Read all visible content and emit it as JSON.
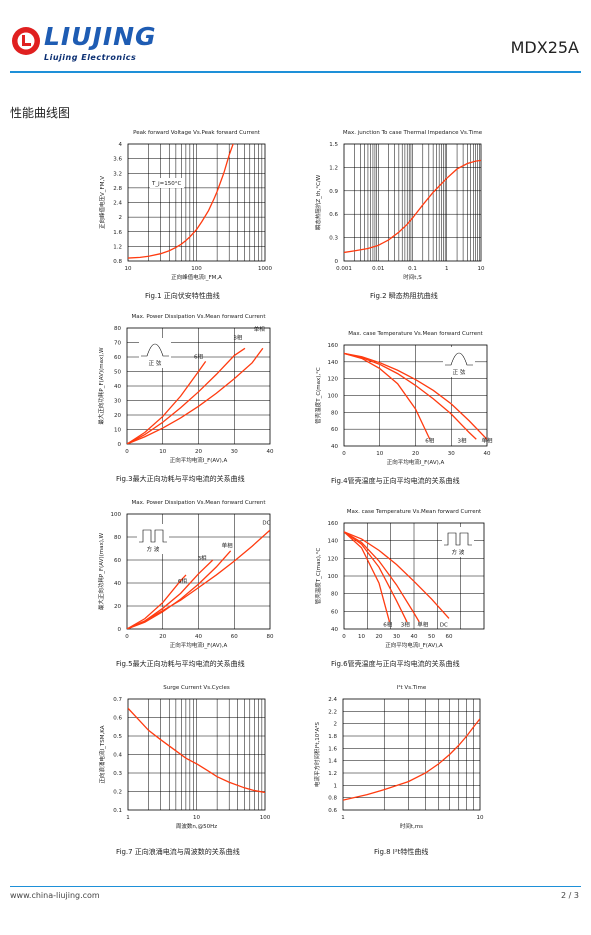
{
  "header": {
    "brand": "LIUJING",
    "brand_sub": "Liujing  Electronics",
    "model": "MDX25A"
  },
  "section_title": "性能曲线图",
  "footer": {
    "url": "www.china-liujing.com",
    "page": "2 / 3"
  },
  "colors": {
    "accent": "#1e90d8",
    "curve": "#ff3b10",
    "grid": "#000000"
  },
  "figures": [
    {
      "caption": "Fig.1 正向伏安特性曲线",
      "title": "Peak forward Voltage Vs.Peak forward Current",
      "xlabel": "正向峰值电流I_FM,A",
      "ylabel": "正向峰值电压V_FM,V",
      "annotation": "T_j=150°C"
    },
    {
      "caption": "Fig.2 瞬态热阻抗曲线",
      "title": "Max. junction To case Thermal Impedance Vs.Time",
      "xlabel": "时间t,S",
      "ylabel": "瞬态热阻抗Z_th,°C/W"
    },
    {
      "caption": "Fig.3最大正向功耗与平均电流的关系曲线",
      "title": "Max. Power Dissipation Vs.Mean forward Current",
      "xlabel": "正向平均电流I_F(AV),A",
      "ylabel": "最大正向功耗P_F(AV)(max),W",
      "inset": "正  弦"
    },
    {
      "caption": "Fig.4管壳温度与正向平均电流的关系曲线",
      "title": "Max. case Temperature Vs.Mean forward Current",
      "xlabel": "正向平均电流I_F(AV),A",
      "ylabel": "管壳温度T_C(max),°C",
      "inset": "正  弦"
    },
    {
      "caption": "Fig.5最大正向功耗与平均电流的关系曲线",
      "title": "Max. Power Dissipation Vs.Mean forward Current",
      "xlabel": "正向平均电流I_F(AV),A",
      "ylabel": "最大正向功耗P_F(AV)(max),W",
      "inset": "方  波"
    },
    {
      "caption": "Fig.6管壳温度与正向平均电流的关系曲线",
      "title": "Max. case Temperature Vs.Mean forward Current",
      "xlabel": "正向平均电流I_F(AV),A",
      "ylabel": "管壳温度T_C(max),°C",
      "inset": "方  波"
    },
    {
      "caption": "Fig.7 正向浪涌电流与周波数的关系曲线",
      "title": "Surge Current Vs.Cycles",
      "xlabel": "周波数n,@50Hz",
      "ylabel": "正向浪涌电流I_TSM,KA"
    },
    {
      "caption": "Fig.8 I²t特性曲线",
      "title": "I²t  Vs.Time",
      "xlabel": "时间t,ms",
      "ylabel": "电流平方时间积I²t,10³A²S"
    }
  ],
  "chart_data": [
    {
      "type": "line",
      "title": "Peak forward Voltage Vs.Peak forward Current",
      "xlabel": "正向峰值电流I_FM,A",
      "ylabel": "正向峰值电压V_FM,V",
      "xscale": "log",
      "xlim": [
        10,
        1000
      ],
      "ylim": [
        0.8,
        4
      ],
      "xticks": [
        "10",
        "100",
        "1000"
      ],
      "yticks": [
        "0.8",
        "1.2",
        "1.6",
        "2",
        "2.4",
        "2.8",
        "3.2",
        "3.6",
        "4"
      ],
      "series": [
        {
          "x": [
            10,
            15,
            20,
            30,
            40,
            50,
            60,
            70,
            80,
            100,
            120,
            150,
            180,
            200,
            250,
            300,
            350,
            400
          ],
          "y": [
            0.88,
            0.9,
            0.93,
            1.0,
            1.08,
            1.17,
            1.26,
            1.36,
            1.46,
            1.66,
            1.88,
            2.18,
            2.5,
            2.7,
            3.2,
            3.7,
            4.05,
            4.4
          ]
        }
      ]
    },
    {
      "type": "line",
      "title": "Max. junction To case Thermal Impedance Vs.Time",
      "xlabel": "时间t,S",
      "ylabel": "瞬态热阻抗Z_th,°C/W",
      "xscale": "log",
      "xlim": [
        0.001,
        10
      ],
      "ylim": [
        0,
        1.5
      ],
      "xticks": [
        "0.001",
        "0.01",
        "0.1",
        "1",
        "10"
      ],
      "yticks": [
        "0",
        "0.3",
        "0.6",
        "0.9",
        "1.2",
        "1.5"
      ],
      "series": [
        {
          "x": [
            0.001,
            0.002,
            0.005,
            0.01,
            0.02,
            0.04,
            0.07,
            0.1,
            0.2,
            0.4,
            0.7,
            1,
            2,
            4,
            7,
            10
          ],
          "y": [
            0.11,
            0.13,
            0.16,
            0.2,
            0.27,
            0.37,
            0.47,
            0.55,
            0.72,
            0.88,
            0.99,
            1.06,
            1.18,
            1.25,
            1.28,
            1.29
          ]
        }
      ]
    },
    {
      "type": "line",
      "title": "Max. Power Dissipation Vs.Mean forward Current",
      "xlabel": "正向平均电流I_F(AV),A",
      "ylabel": "最大正向功耗P_F(AV)(max),W",
      "xlim": [
        0,
        40
      ],
      "ylim": [
        0,
        80
      ],
      "xticks": [
        "0",
        "10",
        "20",
        "30",
        "40"
      ],
      "yticks": [
        "0",
        "10",
        "20",
        "30",
        "40",
        "50",
        "60",
        "70",
        "80"
      ],
      "series": [
        {
          "name": "6相",
          "x": [
            0,
            5,
            10,
            15,
            20,
            22
          ],
          "y": [
            0,
            8,
            19,
            33,
            50,
            57
          ]
        },
        {
          "name": "3相",
          "x": [
            0,
            5,
            10,
            15,
            20,
            25,
            30,
            33
          ],
          "y": [
            0,
            6.5,
            15,
            25,
            36,
            48,
            61,
            66
          ]
        },
        {
          "name": "单相",
          "x": [
            0,
            5,
            10,
            15,
            20,
            25,
            30,
            35,
            38
          ],
          "y": [
            0,
            5,
            11,
            18,
            26,
            35,
            45,
            56,
            66
          ]
        }
      ]
    },
    {
      "type": "line",
      "title": "Max. case Temperature Vs.Mean forward Current",
      "xlabel": "正向平均电流I_F(AV),A",
      "ylabel": "管壳温度T_C(max),°C",
      "xlim": [
        0,
        40
      ],
      "ylim": [
        40,
        160
      ],
      "xticks": [
        "0",
        "10",
        "20",
        "30",
        "40"
      ],
      "yticks": [
        "40",
        "60",
        "80",
        "100",
        "120",
        "140",
        "160"
      ],
      "series": [
        {
          "name": "6相",
          "x": [
            0,
            5,
            10,
            15,
            20,
            24
          ],
          "y": [
            150,
            144,
            132,
            114,
            84,
            48
          ]
        },
        {
          "name": "3相",
          "x": [
            0,
            5,
            10,
            15,
            20,
            25,
            30,
            35,
            37
          ],
          "y": [
            150,
            145,
            137,
            126,
            112,
            96,
            78,
            56,
            48
          ]
        },
        {
          "name": "单相",
          "x": [
            0,
            5,
            10,
            15,
            20,
            25,
            30,
            35,
            40
          ],
          "y": [
            150,
            146,
            139,
            130,
            119,
            106,
            90,
            70,
            48
          ]
        }
      ]
    },
    {
      "type": "line",
      "title": "Max. Power Dissipation Vs.Mean forward Current",
      "xlabel": "正向平均电流I_F(AV),A",
      "ylabel": "最大正向功耗P_F(AV)(max),W",
      "xlim": [
        0,
        80
      ],
      "ylim": [
        0,
        100
      ],
      "xticks": [
        "0",
        "20",
        "40",
        "60",
        "80"
      ],
      "yticks": [
        "0",
        "20",
        "40",
        "60",
        "80",
        "100"
      ],
      "series": [
        {
          "name": "6相",
          "x": [
            0,
            10,
            20,
            30,
            33
          ],
          "y": [
            0,
            9,
            23,
            42,
            47
          ]
        },
        {
          "name": "3相",
          "x": [
            0,
            10,
            20,
            30,
            40,
            48
          ],
          "y": [
            0,
            7,
            18,
            31,
            48,
            60
          ]
        },
        {
          "name": "单相",
          "x": [
            0,
            10,
            20,
            30,
            40,
            50,
            58
          ],
          "y": [
            0,
            6,
            15,
            26,
            39,
            54,
            68
          ]
        },
        {
          "name": "DC",
          "x": [
            0,
            10,
            20,
            30,
            40,
            50,
            60,
            70,
            80
          ],
          "y": [
            0,
            7,
            16,
            25,
            36,
            47,
            59,
            72,
            86
          ]
        }
      ]
    },
    {
      "type": "line",
      "title": "Max. case Temperature Vs.Mean forward Current",
      "xlabel": "正向平均电流I_F(AV),A",
      "ylabel": "管壳温度T_C(max),°C",
      "xlim": [
        0,
        80
      ],
      "ylim": [
        40,
        160
      ],
      "xticks": [
        "0",
        "10",
        "20",
        "30",
        "40",
        "50",
        "60"
      ],
      "yticks": [
        "40",
        "60",
        "80",
        "100",
        "120",
        "140",
        "160"
      ],
      "series": [
        {
          "name": "6相",
          "x": [
            0,
            10,
            20,
            26
          ],
          "y": [
            150,
            132,
            92,
            48
          ]
        },
        {
          "name": "3相",
          "x": [
            0,
            10,
            20,
            30,
            36
          ],
          "y": [
            150,
            136,
            110,
            72,
            48
          ]
        },
        {
          "name": "单相",
          "x": [
            0,
            10,
            20,
            30,
            40,
            43
          ],
          "y": [
            150,
            138,
            117,
            90,
            58,
            48
          ]
        },
        {
          "name": "DC",
          "x": [
            0,
            10,
            20,
            30,
            40,
            50,
            60
          ],
          "y": [
            150,
            142,
            129,
            113,
            94,
            74,
            52
          ]
        }
      ]
    },
    {
      "type": "line",
      "title": "Surge Current Vs.Cycles",
      "xlabel": "周波数n,@50Hz",
      "ylabel": "正向浪涌电流I_TSM,KA",
      "xscale": "log",
      "xlim": [
        1,
        100
      ],
      "ylim": [
        0.1,
        0.7
      ],
      "xticks": [
        "1",
        "10",
        "100"
      ],
      "yticks": [
        "0.1",
        "0.2",
        "0.3",
        "0.4",
        "0.5",
        "0.6",
        "0.7"
      ],
      "series": [
        {
          "x": [
            1,
            1.5,
            2,
            3,
            5,
            7,
            10,
            15,
            20,
            30,
            50,
            70,
            100
          ],
          "y": [
            0.65,
            0.58,
            0.53,
            0.48,
            0.42,
            0.38,
            0.35,
            0.31,
            0.28,
            0.25,
            0.22,
            0.205,
            0.195
          ]
        }
      ]
    },
    {
      "type": "line",
      "title": "I²t  Vs.Time",
      "xlabel": "时间t,ms",
      "ylabel": "电流平方时间积I²t,10³A²S",
      "xscale": "log",
      "xlim": [
        1,
        10
      ],
      "ylim": [
        0.6,
        2.4
      ],
      "xticks": [
        "1",
        "10"
      ],
      "yticks": [
        "0.6",
        "0.8",
        "1",
        "1.2",
        "1.4",
        "1.6",
        "1.8",
        "2",
        "2.2",
        "2.4"
      ],
      "series": [
        {
          "x": [
            1,
            1.5,
            2,
            3,
            4,
            5,
            6,
            7,
            8,
            9,
            10
          ],
          "y": [
            0.76,
            0.85,
            0.93,
            1.06,
            1.2,
            1.35,
            1.5,
            1.65,
            1.8,
            1.95,
            2.08
          ]
        }
      ]
    }
  ]
}
